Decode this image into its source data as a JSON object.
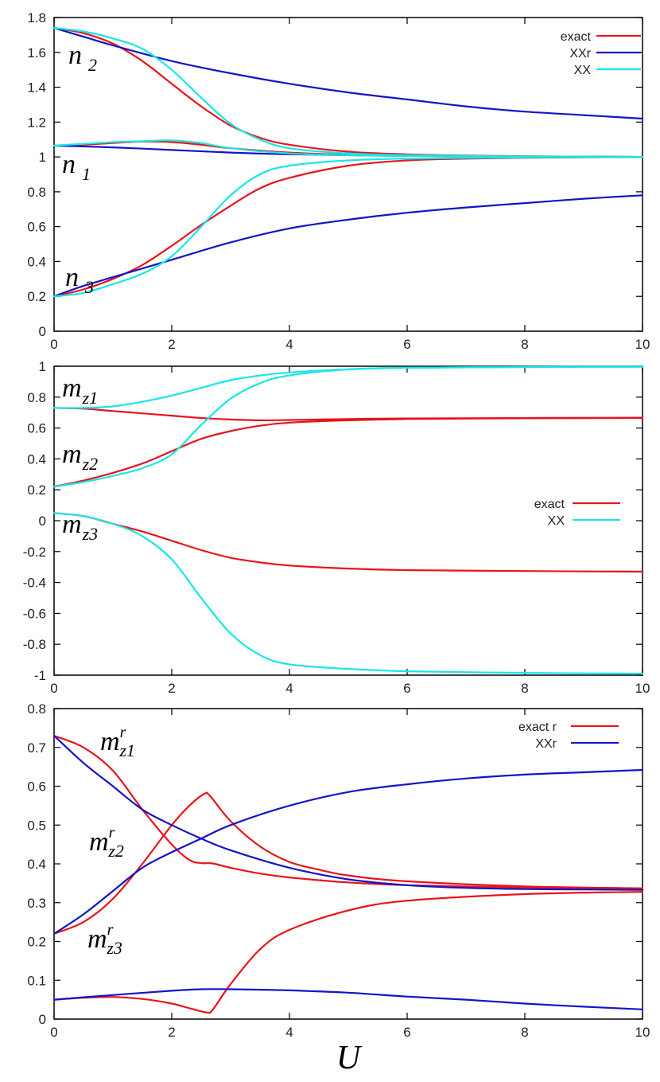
{
  "chart_data": [
    {
      "type": "line",
      "panel": "top",
      "xlim": [
        0,
        10
      ],
      "ylim": [
        0,
        1.8
      ],
      "xticks": [
        "0",
        "2",
        "4",
        "6",
        "8",
        "10"
      ],
      "yticks": [
        "0",
        "0.2",
        "0.4",
        "0.6",
        "0.8",
        "1",
        "1.2",
        "1.4",
        "1.6",
        "1.8"
      ],
      "legend": [
        "exact",
        "XXr",
        "XX"
      ],
      "legend_position": "top-right",
      "curve_labels": [
        {
          "base": "n",
          "sub": "2",
          "sup": ""
        },
        {
          "base": "n",
          "sub": "1",
          "sup": ""
        },
        {
          "base": "n",
          "sub": "3",
          "sup": ""
        }
      ],
      "series": [
        {
          "name": "exact",
          "color": "#e8141c",
          "x": [
            0,
            0.5,
            1,
            1.5,
            2,
            2.5,
            3,
            3.5,
            4,
            5,
            6,
            7,
            8,
            10
          ],
          "y": [
            1.74,
            1.71,
            1.65,
            1.55,
            1.42,
            1.29,
            1.18,
            1.11,
            1.07,
            1.03,
            1.015,
            1.008,
            1.004,
            1.0
          ]
        },
        {
          "name": "exact",
          "color": "#e8141c",
          "x": [
            0,
            0.5,
            1,
            1.5,
            2,
            2.5,
            3,
            4,
            5,
            6,
            8,
            10
          ],
          "y": [
            1.065,
            1.07,
            1.08,
            1.088,
            1.085,
            1.07,
            1.05,
            1.025,
            1.012,
            1.006,
            1.002,
            1.0
          ]
        },
        {
          "name": "exact",
          "color": "#e8141c",
          "x": [
            0,
            0.5,
            1,
            1.5,
            2,
            2.5,
            3,
            3.5,
            4,
            5,
            6,
            7,
            8,
            10
          ],
          "y": [
            0.2,
            0.24,
            0.3,
            0.38,
            0.49,
            0.61,
            0.72,
            0.82,
            0.88,
            0.95,
            0.98,
            0.99,
            0.995,
            1.0
          ]
        },
        {
          "name": "XXr",
          "color": "#1414c8",
          "x": [
            0,
            0.5,
            1,
            2,
            3,
            4,
            5,
            6,
            7,
            8,
            9,
            10
          ],
          "y": [
            1.74,
            1.69,
            1.64,
            1.55,
            1.48,
            1.42,
            1.37,
            1.33,
            1.29,
            1.26,
            1.24,
            1.22
          ]
        },
        {
          "name": "XXr",
          "color": "#1414c8",
          "x": [
            0,
            1,
            2,
            3,
            4,
            6,
            8,
            10
          ],
          "y": [
            1.065,
            1.055,
            1.04,
            1.025,
            1.015,
            1.006,
            1.002,
            1.0
          ]
        },
        {
          "name": "XXr",
          "color": "#1414c8",
          "x": [
            0,
            0.5,
            1,
            2,
            3,
            4,
            5,
            6,
            7,
            8,
            9,
            10
          ],
          "y": [
            0.2,
            0.26,
            0.31,
            0.41,
            0.51,
            0.59,
            0.64,
            0.68,
            0.71,
            0.735,
            0.76,
            0.78
          ]
        },
        {
          "name": "XX",
          "color": "#19e6e6",
          "x": [
            0,
            0.5,
            1,
            1.5,
            2,
            2.5,
            3,
            3.5,
            4,
            5,
            6,
            8,
            10
          ],
          "y": [
            1.74,
            1.72,
            1.68,
            1.62,
            1.5,
            1.34,
            1.19,
            1.1,
            1.05,
            1.02,
            1.01,
            1.003,
            1.0
          ]
        },
        {
          "name": "XX",
          "color": "#19e6e6",
          "x": [
            0,
            0.5,
            1,
            1.5,
            2,
            2.5,
            3,
            4,
            5,
            6,
            8,
            10
          ],
          "y": [
            1.065,
            1.075,
            1.085,
            1.09,
            1.095,
            1.08,
            1.05,
            1.02,
            1.01,
            1.005,
            1.002,
            1.0
          ]
        },
        {
          "name": "XX",
          "color": "#19e6e6",
          "x": [
            0,
            0.5,
            1,
            1.5,
            2,
            2.5,
            3,
            3.5,
            4,
            5,
            6,
            8,
            10
          ],
          "y": [
            0.2,
            0.22,
            0.27,
            0.33,
            0.43,
            0.6,
            0.78,
            0.9,
            0.95,
            0.98,
            0.99,
            0.997,
            1.0
          ]
        }
      ]
    },
    {
      "type": "line",
      "panel": "middle",
      "xlim": [
        0,
        10
      ],
      "ylim": [
        -1,
        1
      ],
      "xticks": [
        "0",
        "2",
        "4",
        "6",
        "8",
        "10"
      ],
      "yticks": [
        "-1",
        "-0.8",
        "-0.6",
        "-0.4",
        "-0.2",
        "0",
        "0.2",
        "0.4",
        "0.6",
        "0.8",
        "1"
      ],
      "legend": [
        "exact",
        "XX"
      ],
      "legend_position": "right",
      "curve_labels": [
        {
          "base": "m",
          "sub": "z1",
          "sup": ""
        },
        {
          "base": "m",
          "sub": "z2",
          "sup": ""
        },
        {
          "base": "m",
          "sub": "z3",
          "sup": ""
        }
      ],
      "series": [
        {
          "name": "exact",
          "color": "#e8141c",
          "x": [
            0,
            0.5,
            1,
            1.5,
            2,
            2.5,
            3,
            3.5,
            4,
            5,
            6,
            8,
            10
          ],
          "y": [
            0.73,
            0.725,
            0.71,
            0.695,
            0.68,
            0.665,
            0.655,
            0.65,
            0.652,
            0.658,
            0.662,
            0.665,
            0.667
          ]
        },
        {
          "name": "exact",
          "color": "#e8141c",
          "x": [
            0,
            0.5,
            1,
            1.5,
            2,
            2.5,
            3,
            3.5,
            4,
            5,
            6,
            8,
            10
          ],
          "y": [
            0.22,
            0.26,
            0.31,
            0.37,
            0.45,
            0.53,
            0.58,
            0.615,
            0.635,
            0.65,
            0.658,
            0.663,
            0.665
          ]
        },
        {
          "name": "exact",
          "color": "#e8141c",
          "x": [
            0,
            0.5,
            1,
            1.5,
            2,
            2.5,
            3,
            3.5,
            4,
            5,
            6,
            8,
            10
          ],
          "y": [
            0.05,
            0.03,
            -0.02,
            -0.07,
            -0.13,
            -0.19,
            -0.24,
            -0.27,
            -0.29,
            -0.31,
            -0.32,
            -0.326,
            -0.33
          ]
        },
        {
          "name": "XX",
          "color": "#19e6e6",
          "x": [
            0,
            0.5,
            1,
            1.5,
            2,
            2.5,
            3,
            3.5,
            4,
            5,
            6,
            8,
            10
          ],
          "y": [
            0.73,
            0.73,
            0.74,
            0.77,
            0.81,
            0.86,
            0.91,
            0.94,
            0.96,
            0.98,
            0.99,
            0.995,
            0.997
          ]
        },
        {
          "name": "XX",
          "color": "#19e6e6",
          "x": [
            0,
            0.5,
            1,
            1.5,
            2,
            2.5,
            3,
            3.5,
            4,
            5,
            6,
            8,
            10
          ],
          "y": [
            0.22,
            0.25,
            0.29,
            0.34,
            0.43,
            0.62,
            0.79,
            0.89,
            0.94,
            0.98,
            0.99,
            0.995,
            0.997
          ]
        },
        {
          "name": "XX",
          "color": "#19e6e6",
          "x": [
            0,
            0.5,
            1,
            1.5,
            2,
            2.5,
            3,
            3.5,
            4,
            5,
            6,
            8,
            10
          ],
          "y": [
            0.05,
            0.03,
            -0.02,
            -0.1,
            -0.25,
            -0.5,
            -0.73,
            -0.87,
            -0.93,
            -0.96,
            -0.975,
            -0.985,
            -0.99
          ]
        }
      ]
    },
    {
      "type": "line",
      "panel": "bottom",
      "xlim": [
        0,
        10
      ],
      "ylim": [
        0,
        0.8
      ],
      "xticks": [
        "0",
        "2",
        "4",
        "6",
        "8",
        "10"
      ],
      "yticks": [
        "0",
        "0.1",
        "0.2",
        "0.3",
        "0.4",
        "0.5",
        "0.6",
        "0.7",
        "0.8"
      ],
      "xlabel": "U",
      "legend": [
        "exact r",
        "XXr"
      ],
      "legend_position": "top-right",
      "curve_labels": [
        {
          "base": "m",
          "sub": "z1",
          "sup": "r"
        },
        {
          "base": "m",
          "sub": "z2",
          "sup": "r"
        },
        {
          "base": "m",
          "sub": "z3",
          "sup": "r"
        }
      ],
      "series": [
        {
          "name": "exact r",
          "color": "#e8141c",
          "x": [
            0,
            0.5,
            1,
            1.5,
            2,
            2.3,
            2.5,
            2.7,
            3,
            3.5,
            4,
            5,
            6,
            8,
            10
          ],
          "y": [
            0.73,
            0.7,
            0.64,
            0.54,
            0.45,
            0.41,
            0.402,
            0.401,
            0.39,
            0.375,
            0.365,
            0.352,
            0.345,
            0.339,
            0.335
          ]
        },
        {
          "name": "exact r",
          "color": "#e8141c",
          "x": [
            0,
            0.5,
            1,
            1.5,
            2,
            2.3,
            2.55,
            2.65,
            3,
            3.5,
            4,
            4.5,
            5,
            6,
            8,
            10
          ],
          "y": [
            0.22,
            0.25,
            0.31,
            0.4,
            0.5,
            0.55,
            0.58,
            0.575,
            0.51,
            0.445,
            0.405,
            0.385,
            0.37,
            0.355,
            0.342,
            0.337
          ]
        },
        {
          "name": "exact r",
          "color": "#e8141c",
          "x": [
            0,
            0.5,
            1,
            1.5,
            2,
            2.3,
            2.6,
            2.7,
            3,
            3.5,
            4,
            5,
            6,
            8,
            10
          ],
          "y": [
            0.05,
            0.055,
            0.057,
            0.052,
            0.04,
            0.028,
            0.017,
            0.025,
            0.09,
            0.18,
            0.23,
            0.28,
            0.305,
            0.322,
            0.328
          ]
        },
        {
          "name": "XXr",
          "color": "#1414c8",
          "x": [
            0,
            0.5,
            1,
            1.5,
            2,
            2.5,
            3,
            4,
            5,
            6,
            7,
            8,
            9,
            10
          ],
          "y": [
            0.73,
            0.66,
            0.6,
            0.54,
            0.5,
            0.465,
            0.435,
            0.39,
            0.36,
            0.345,
            0.338,
            0.335,
            0.334,
            0.333
          ]
        },
        {
          "name": "XXr",
          "color": "#1414c8",
          "x": [
            0,
            0.5,
            1,
            1.5,
            2,
            2.5,
            3,
            4,
            5,
            6,
            7,
            8,
            9,
            10
          ],
          "y": [
            0.22,
            0.27,
            0.33,
            0.39,
            0.43,
            0.465,
            0.5,
            0.55,
            0.585,
            0.605,
            0.62,
            0.63,
            0.636,
            0.642
          ]
        },
        {
          "name": "XXr",
          "color": "#1414c8",
          "x": [
            0,
            1,
            2,
            2.5,
            3,
            4,
            5,
            6,
            7,
            8,
            9,
            10
          ],
          "y": [
            0.05,
            0.062,
            0.073,
            0.077,
            0.077,
            0.074,
            0.068,
            0.058,
            0.05,
            0.04,
            0.032,
            0.025
          ]
        }
      ]
    }
  ]
}
